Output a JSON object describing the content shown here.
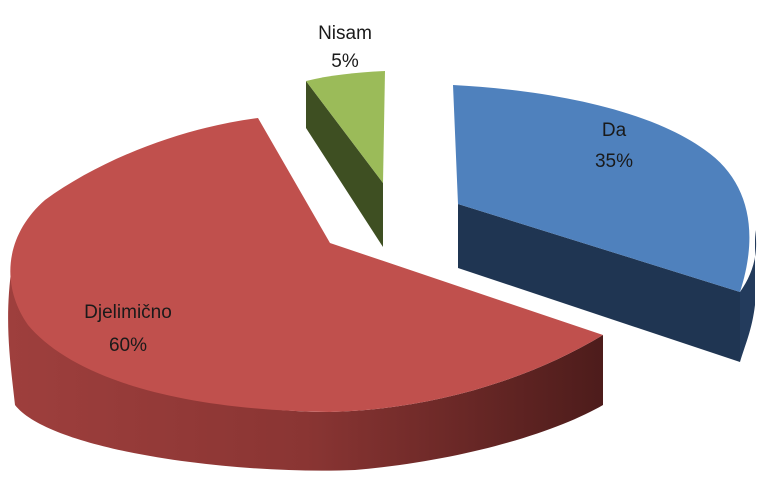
{
  "chart_data": {
    "type": "pie",
    "style": "3d-exploded",
    "title": "",
    "slices": [
      {
        "label": "Da",
        "percent_label": "35%",
        "value": 35,
        "color": "#4f81bd",
        "side_color": "#1f3552"
      },
      {
        "label": "Djelimično",
        "percent_label": "60%",
        "value": 60,
        "color": "#c0504d",
        "side_color": "#6e2c2a"
      },
      {
        "label": "Nisam",
        "percent_label": "5%",
        "value": 5,
        "color": "#9bbb59",
        "side_color": "#3e4f22"
      }
    ],
    "legend": "none",
    "labels": "on-slice"
  }
}
